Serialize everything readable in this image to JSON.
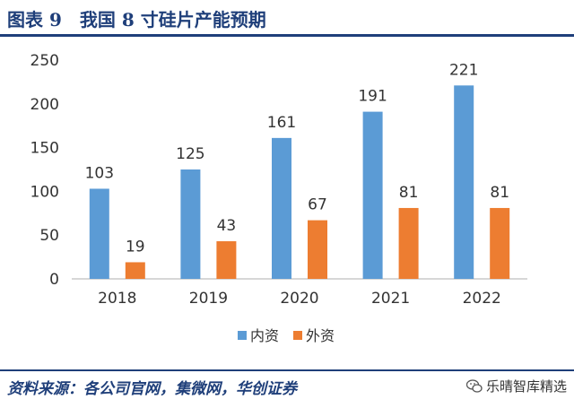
{
  "header": {
    "title": "图表 9　我国 8 寸硅片产能预期"
  },
  "footer": {
    "source": "资料来源：各公司官网，集微网，华创证券",
    "watermark": "乐晴智库精选",
    "watermark_icon": "wechat-icon"
  },
  "colors": {
    "domestic": "#5b9bd5",
    "foreign": "#ed7d31",
    "brand": "#1f3f7a"
  },
  "chart_data": {
    "type": "bar",
    "categories": [
      "2018",
      "2019",
      "2020",
      "2021",
      "2022"
    ],
    "series": [
      {
        "name": "内资",
        "values": [
          103,
          125,
          161,
          191,
          221
        ]
      },
      {
        "name": "外资",
        "values": [
          19,
          43,
          67,
          81,
          81
        ]
      }
    ],
    "yticks": [
      0,
      50,
      100,
      150,
      200,
      250
    ],
    "ylim": [
      0,
      250
    ],
    "grid": false,
    "legend_position": "bottom",
    "data_labels": true
  }
}
